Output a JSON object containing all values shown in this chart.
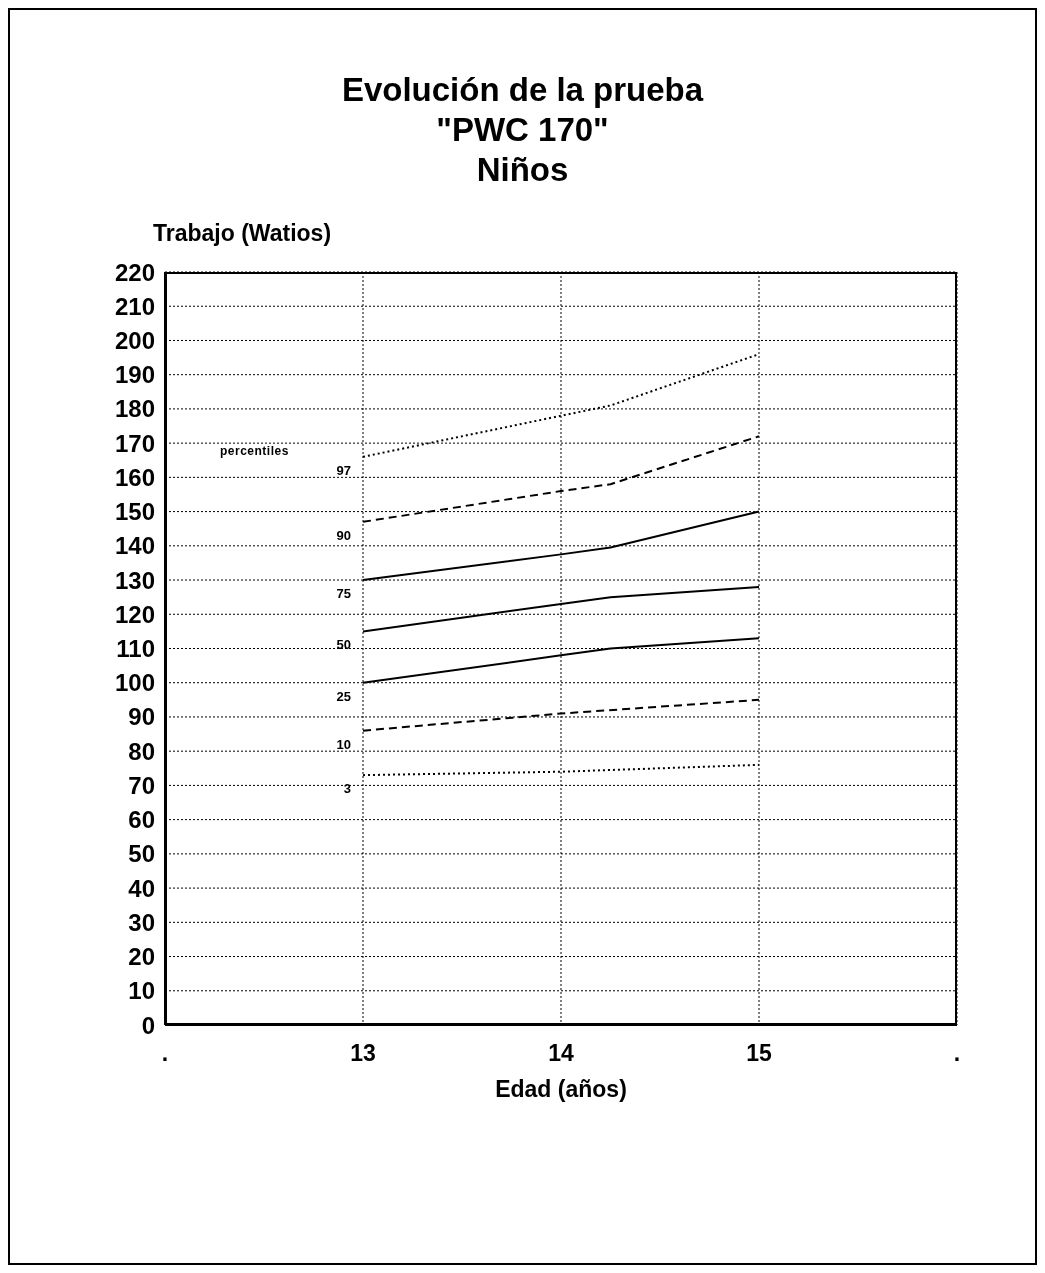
{
  "chart_data": {
    "type": "line",
    "title": "Evolución de la prueba\n\"PWC 170\"\nNiños",
    "xlabel": "Edad (años)",
    "ylabel": "Trabajo (Watios)",
    "annotations": [
      "percentiles"
    ],
    "xlim": [
      12,
      16
    ],
    "xticks": [
      {
        "value": 12,
        "label": "."
      },
      13,
      14,
      15,
      {
        "value": 16,
        "label": "."
      }
    ],
    "ylim": [
      0,
      220
    ],
    "yticks": [
      0,
      10,
      20,
      30,
      40,
      50,
      60,
      70,
      80,
      90,
      100,
      110,
      120,
      130,
      140,
      150,
      160,
      170,
      180,
      190,
      200,
      210,
      220
    ],
    "grid": true,
    "marker": "none",
    "series": [
      {
        "name": "97",
        "color": "#000000",
        "line_style": "dotted",
        "x": [
          13,
          14,
          14.25,
          15
        ],
        "values": [
          166,
          178,
          181,
          196
        ]
      },
      {
        "name": "90",
        "color": "#000000",
        "line_style": "dashed",
        "x": [
          13,
          14,
          14.25,
          15
        ],
        "values": [
          147,
          156,
          158,
          172
        ]
      },
      {
        "name": "75",
        "color": "#000000",
        "line_style": "solid",
        "x": [
          13,
          14,
          14.25,
          15
        ],
        "values": [
          130,
          137.5,
          139.5,
          150
        ]
      },
      {
        "name": "50",
        "color": "#000000",
        "line_style": "solid",
        "x": [
          13,
          14,
          14.25,
          15
        ],
        "values": [
          115,
          123,
          125,
          128
        ]
      },
      {
        "name": "25",
        "color": "#000000",
        "line_style": "solid",
        "x": [
          13,
          14,
          14.25,
          15
        ],
        "values": [
          100,
          108,
          110,
          113
        ]
      },
      {
        "name": "10",
        "color": "#000000",
        "line_style": "dashed",
        "x": [
          13,
          14,
          15
        ],
        "values": [
          86,
          91,
          95
        ]
      },
      {
        "name": "3",
        "color": "#000000",
        "line_style": "dotted",
        "x": [
          13,
          14,
          15
        ],
        "values": [
          73,
          74,
          76
        ]
      }
    ]
  }
}
